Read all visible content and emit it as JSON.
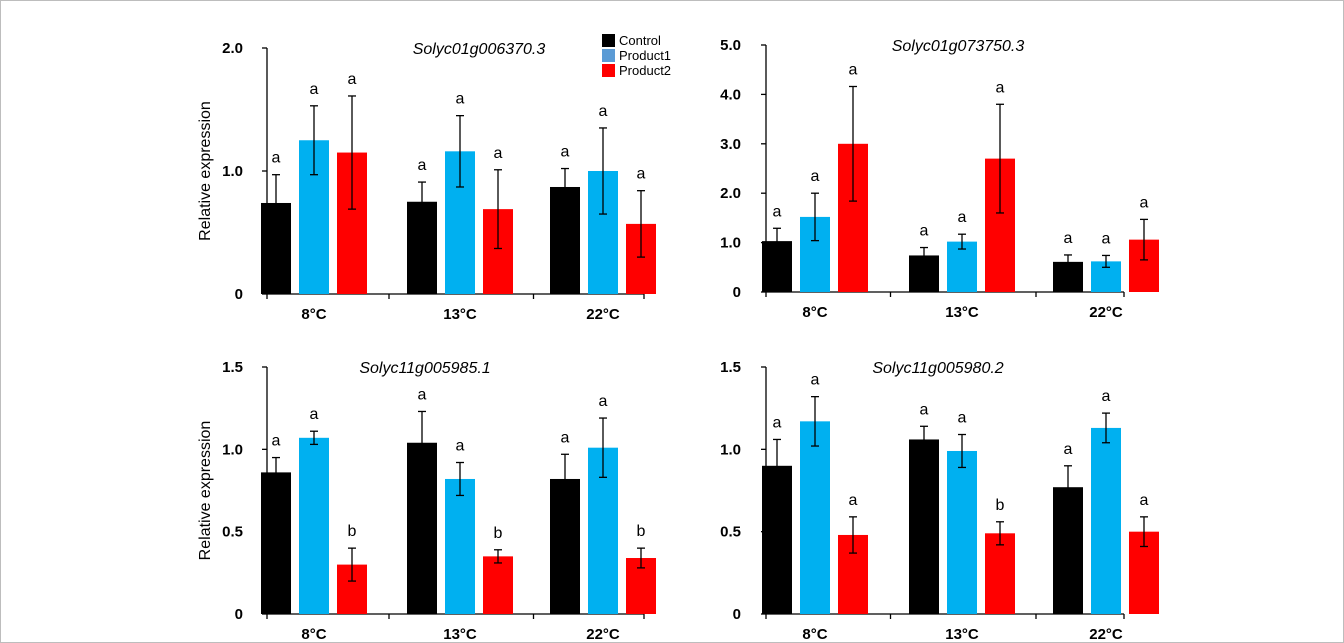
{
  "legend": {
    "entries": [
      {
        "label": "Control",
        "color": "#000000"
      },
      {
        "label": "Product1",
        "color": "#5B9BD5"
      },
      {
        "label": "Product2",
        "color": "#FF0000"
      }
    ]
  },
  "chart_data": [
    {
      "type": "bar",
      "title": "Solyc01g006370.3",
      "ylabel": "Relative expression",
      "ylim": [
        0,
        2.0
      ],
      "yticks": [
        0,
        1.0,
        2.0
      ],
      "ytick_labels": [
        "0",
        "1.0",
        "2.0"
      ],
      "categories": [
        "8°C",
        "13°C",
        "22°C"
      ],
      "series": [
        {
          "name": "Control",
          "color": "#000000",
          "values": [
            0.74,
            0.75,
            0.87
          ],
          "errors": [
            0.23,
            0.16,
            0.15
          ],
          "labels": [
            "a",
            "a",
            "a"
          ]
        },
        {
          "name": "Product1",
          "color": "#00B0F0",
          "values": [
            1.25,
            1.16,
            1.0
          ],
          "errors": [
            0.28,
            0.29,
            0.35
          ],
          "labels": [
            "a",
            "a",
            "a"
          ]
        },
        {
          "name": "Product2",
          "color": "#FF0000",
          "values": [
            1.15,
            0.69,
            0.57
          ],
          "errors": [
            0.46,
            0.32,
            0.27
          ],
          "labels": [
            "a",
            "a",
            "a"
          ]
        }
      ]
    },
    {
      "type": "bar",
      "title": "Solyc01g073750.3",
      "ylabel": "",
      "ylim": [
        0,
        5.0
      ],
      "yticks": [
        0,
        1.0,
        2.0,
        3.0,
        4.0,
        5.0
      ],
      "ytick_labels": [
        "0",
        "1.0",
        "2.0",
        "3.0",
        "4.0",
        "5.0"
      ],
      "categories": [
        "8°C",
        "13°C",
        "22°C"
      ],
      "series": [
        {
          "name": "Control",
          "color": "#000000",
          "values": [
            1.03,
            0.74,
            0.61
          ],
          "errors": [
            0.26,
            0.16,
            0.14
          ],
          "labels": [
            "a",
            "a",
            "a"
          ]
        },
        {
          "name": "Product1",
          "color": "#00B0F0",
          "values": [
            1.52,
            1.02,
            0.62
          ],
          "errors": [
            0.48,
            0.15,
            0.12
          ],
          "labels": [
            "a",
            "a",
            "a"
          ]
        },
        {
          "name": "Product2",
          "color": "#FF0000",
          "values": [
            3.0,
            2.7,
            1.06
          ],
          "errors": [
            1.16,
            1.1,
            0.41
          ],
          "labels": [
            "a",
            "a",
            "a"
          ]
        }
      ]
    },
    {
      "type": "bar",
      "title": "Solyc11g005985.1",
      "ylabel": "Relative expression",
      "ylim": [
        0,
        1.5
      ],
      "yticks": [
        0,
        0.5,
        1.0,
        1.5
      ],
      "ytick_labels": [
        "0",
        "0.5",
        "1.0",
        "1.5"
      ],
      "categories": [
        "8°C",
        "13°C",
        "22°C"
      ],
      "series": [
        {
          "name": "Control",
          "color": "#000000",
          "values": [
            0.86,
            1.04,
            0.82
          ],
          "errors": [
            0.09,
            0.19,
            0.15
          ],
          "labels": [
            "a",
            "a",
            "a"
          ]
        },
        {
          "name": "Product1",
          "color": "#00B0F0",
          "values": [
            1.07,
            0.82,
            1.01
          ],
          "errors": [
            0.04,
            0.1,
            0.18
          ],
          "labels": [
            "a",
            "a",
            "a"
          ]
        },
        {
          "name": "Product2",
          "color": "#FF0000",
          "values": [
            0.3,
            0.35,
            0.34
          ],
          "errors": [
            0.1,
            0.04,
            0.06
          ],
          "labels": [
            "b",
            "b",
            "b"
          ]
        }
      ]
    },
    {
      "type": "bar",
      "title": "Solyc11g005980.2",
      "ylabel": "",
      "ylim": [
        0,
        1.5
      ],
      "yticks": [
        0,
        0.5,
        1.0,
        1.5
      ],
      "ytick_labels": [
        "0",
        "0.5",
        "1.0",
        "1.5"
      ],
      "categories": [
        "8°C",
        "13°C",
        "22°C"
      ],
      "series": [
        {
          "name": "Control",
          "color": "#000000",
          "values": [
            0.9,
            1.06,
            0.77
          ],
          "errors": [
            0.16,
            0.08,
            0.13
          ],
          "labels": [
            "a",
            "a",
            "a"
          ]
        },
        {
          "name": "Product1",
          "color": "#00B0F0",
          "values": [
            1.17,
            0.99,
            1.13
          ],
          "errors": [
            0.15,
            0.1,
            0.09
          ],
          "labels": [
            "a",
            "a",
            "a"
          ]
        },
        {
          "name": "Product2",
          "color": "#FF0000",
          "values": [
            0.48,
            0.49,
            0.5
          ],
          "errors": [
            0.11,
            0.07,
            0.09
          ],
          "labels": [
            "a",
            "b",
            "a"
          ]
        }
      ]
    }
  ]
}
